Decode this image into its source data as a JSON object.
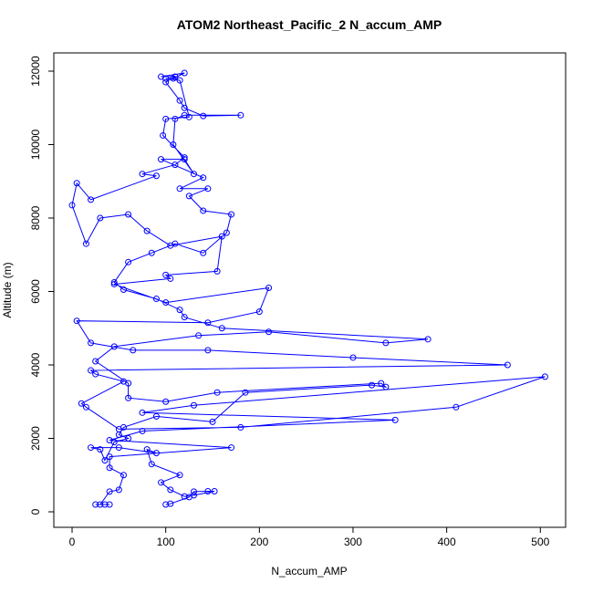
{
  "chart_data": {
    "type": "line",
    "title": "ATOM2 Northeast_Pacific_2 N_accum_AMP",
    "x_label": "N_accum_AMP",
    "y_label": "Altitude (m)",
    "color": "blue",
    "markers": true,
    "xlim": [
      -19.5,
      527
    ],
    "ylim": [
      -422,
      12497
    ],
    "xticks": [
      0,
      100,
      200,
      300,
      400,
      500
    ],
    "yticks": [
      0,
      2000,
      4000,
      6000,
      8000,
      10000,
      12000
    ],
    "x": [
      100,
      105,
      125,
      130,
      145,
      152,
      130,
      120,
      105,
      95,
      115,
      85,
      80,
      90,
      50,
      20,
      30,
      35,
      45,
      60,
      50,
      55,
      90,
      150,
      185,
      320,
      335,
      330,
      155,
      100,
      60,
      60,
      25,
      45,
      135,
      210,
      335,
      380,
      160,
      120,
      115,
      90,
      55,
      45,
      60,
      85,
      110,
      140,
      165,
      170,
      140,
      125,
      145,
      115,
      140,
      95,
      120,
      130,
      108,
      110,
      120,
      180,
      140,
      120,
      115,
      100,
      110,
      95,
      120,
      108,
      100,
      115,
      125,
      100,
      97,
      120,
      110,
      75,
      90,
      20,
      5,
      0,
      15,
      30,
      60,
      80,
      105,
      160,
      155,
      100,
      105,
      45,
      100,
      210,
      200,
      145,
      5,
      20,
      65,
      145,
      300,
      465,
      20,
      25,
      55,
      10,
      15,
      50,
      180,
      410,
      505,
      130,
      75,
      345,
      75,
      40,
      170,
      40,
      40,
      55,
      50,
      40,
      30,
      25,
      35,
      40
    ],
    "values": [
      200,
      220,
      400,
      550,
      560,
      560,
      450,
      420,
      600,
      800,
      1000,
      1300,
      1700,
      1600,
      1750,
      1750,
      1700,
      1400,
      1900,
      2000,
      2100,
      2300,
      2600,
      2450,
      3250,
      3450,
      3400,
      3500,
      3250,
      3000,
      3100,
      3500,
      4100,
      4500,
      4800,
      4900,
      4600,
      4700,
      5000,
      5300,
      5500,
      5800,
      6050,
      6250,
      6800,
      7050,
      7300,
      7050,
      7600,
      8100,
      8200,
      8600,
      8800,
      8800,
      9100,
      9600,
      9600,
      9200,
      10000,
      10700,
      10800,
      10800,
      10780,
      11000,
      11200,
      11700,
      11850,
      11850,
      11950,
      11800,
      11800,
      11750,
      10750,
      10700,
      10250,
      9650,
      9450,
      9200,
      9150,
      8500,
      8950,
      8350,
      7300,
      8000,
      8100,
      7650,
      7250,
      7500,
      6550,
      6450,
      6350,
      6200,
      5700,
      6100,
      5450,
      5150,
      5200,
      4600,
      4400,
      4400,
      4200,
      4000,
      3850,
      3750,
      3550,
      2950,
      2850,
      2250,
      2300,
      2850,
      3680,
      2900,
      2700,
      2500,
      2200,
      1950,
      1750,
      1500,
      1200,
      1000,
      600,
      550,
      200,
      200,
      200,
      200
    ]
  }
}
